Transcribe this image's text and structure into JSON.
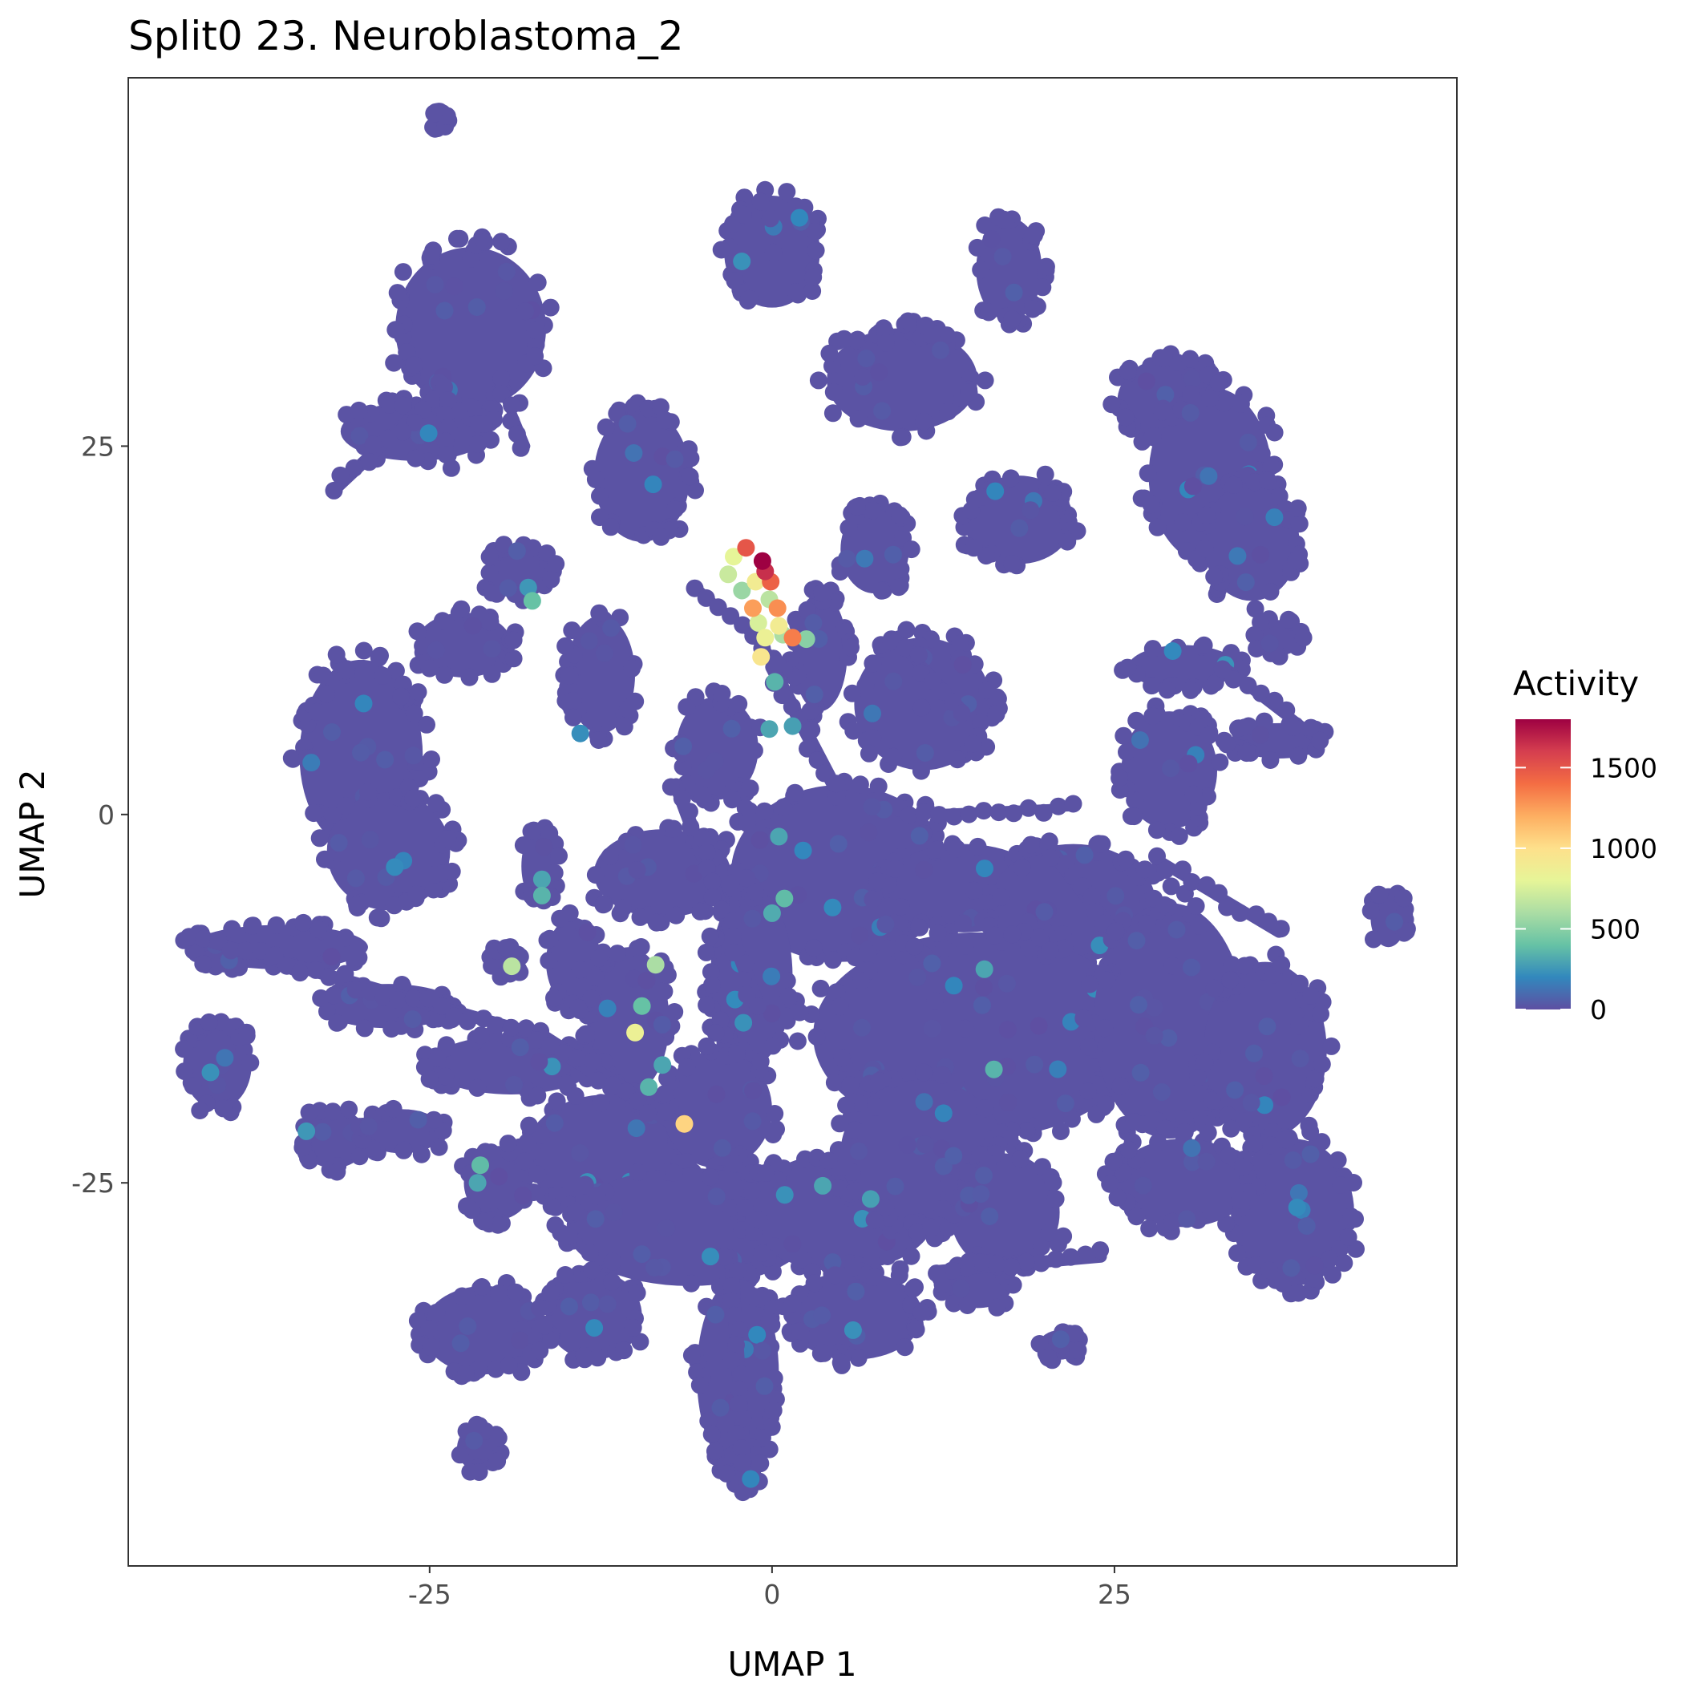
{
  "chart_data": {
    "type": "scatter",
    "title": "Split0 23. Neuroblastoma_2",
    "xlabel": "UMAP 1",
    "ylabel": "UMAP 2",
    "xlim": [
      -47,
      50
    ],
    "ylim": [
      -51,
      50
    ],
    "xticks": [
      "-25",
      "0",
      "25"
    ],
    "xtick_values": [
      -25,
      0,
      25
    ],
    "yticks": [
      "25",
      "0",
      "-25"
    ],
    "ytick_values": [
      25,
      0,
      -25
    ],
    "grid": false,
    "legend": {
      "title": "Activity",
      "position": "right",
      "labels": [
        "1500",
        "1000",
        "500",
        "0"
      ],
      "values": [
        1500,
        1000,
        500,
        0
      ],
      "range": [
        0,
        1800
      ],
      "colormap": [
        "#5e4fa2",
        "#3288bd",
        "#66c2a5",
        "#abdda4",
        "#e6f598",
        "#fee08b",
        "#fdae61",
        "#f46d43",
        "#d53e4f",
        "#9e0142"
      ]
    },
    "base_color": "#5b53a4",
    "clusters": [
      {
        "x": -24.3,
        "y": 47.1,
        "rx": 0.6,
        "ry": 0.6
      },
      {
        "x": 0.0,
        "y": 38.2,
        "rx": 3.5,
        "ry": 3.8
      },
      {
        "x": 17.3,
        "y": 37.0,
        "rx": 2.4,
        "ry": 3.5
      },
      {
        "x": -22.0,
        "y": 33.0,
        "rx": 5.5,
        "ry": 5.5
      },
      {
        "x": -26.0,
        "y": 26.0,
        "rx": 5.5,
        "ry": 2.0
      },
      {
        "x": 9.5,
        "y": 29.5,
        "rx": 5.5,
        "ry": 3.5
      },
      {
        "x": 29.0,
        "y": 28.0,
        "rx": 3.8,
        "ry": 3.0
      },
      {
        "x": 32.0,
        "y": 23.0,
        "rx": 4.5,
        "ry": 6.0
      },
      {
        "x": 35.0,
        "y": 18.5,
        "rx": 3.5,
        "ry": 4.0
      },
      {
        "x": -9.5,
        "y": 23.0,
        "rx": 3.5,
        "ry": 4.5
      },
      {
        "x": 18.0,
        "y": 20.0,
        "rx": 4.0,
        "ry": 3.0
      },
      {
        "x": 7.5,
        "y": 18.0,
        "rx": 2.5,
        "ry": 3.0
      },
      {
        "x": -18.5,
        "y": 16.5,
        "rx": 2.5,
        "ry": 1.8
      },
      {
        "x": -22.5,
        "y": 11.5,
        "rx": 3.5,
        "ry": 2.2
      },
      {
        "x": -12.5,
        "y": 9.5,
        "rx": 2.5,
        "ry": 4.0
      },
      {
        "x": -30.0,
        "y": 4.0,
        "rx": 4.5,
        "ry": 6.5
      },
      {
        "x": -28.0,
        "y": -2.5,
        "rx": 4.5,
        "ry": 4.0
      },
      {
        "x": -17.0,
        "y": -3.5,
        "rx": 1.3,
        "ry": 2.5
      },
      {
        "x": 30.0,
        "y": 10.0,
        "rx": 4.0,
        "ry": 1.5
      },
      {
        "x": 37.0,
        "y": 12.0,
        "rx": 1.8,
        "ry": 1.2
      },
      {
        "x": 37.0,
        "y": 5.0,
        "rx": 3.5,
        "ry": 1.2
      },
      {
        "x": 29.0,
        "y": 3.0,
        "rx": 3.5,
        "ry": 4.0
      },
      {
        "x": 11.0,
        "y": 7.5,
        "rx": 5.0,
        "ry": 4.5
      },
      {
        "x": 3.5,
        "y": 11.0,
        "rx": 2.0,
        "ry": 4.0
      },
      {
        "x": -4.0,
        "y": 4.5,
        "rx": 3.0,
        "ry": 3.5
      },
      {
        "x": 5.0,
        "y": -4.0,
        "rx": 8.0,
        "ry": 6.0
      },
      {
        "x": 14.0,
        "y": -5.0,
        "rx": 6.0,
        "ry": 3.0
      },
      {
        "x": 22.0,
        "y": -6.0,
        "rx": 6.0,
        "ry": 4.0
      },
      {
        "x": -8.0,
        "y": -4.0,
        "rx": 5.0,
        "ry": 3.0
      },
      {
        "x": -1.5,
        "y": -11.0,
        "rx": 3.0,
        "ry": 6.0
      },
      {
        "x": 15.0,
        "y": -15.0,
        "rx": 12.0,
        "ry": 7.0
      },
      {
        "x": 29.0,
        "y": -14.0,
        "rx": 5.5,
        "ry": 8.0
      },
      {
        "x": 36.0,
        "y": -16.0,
        "rx": 4.5,
        "ry": 6.0
      },
      {
        "x": 38.0,
        "y": -27.0,
        "rx": 4.5,
        "ry": 5.0
      },
      {
        "x": 30.0,
        "y": -25.0,
        "rx": 5.0,
        "ry": 3.0
      },
      {
        "x": 45.0,
        "y": -7.0,
        "rx": 1.3,
        "ry": 2.0
      },
      {
        "x": -10.5,
        "y": -14.0,
        "rx": 3.0,
        "ry": 5.0
      },
      {
        "x": -14.5,
        "y": -10.0,
        "rx": 2.0,
        "ry": 3.0
      },
      {
        "x": -19.5,
        "y": -10.0,
        "rx": 1.2,
        "ry": 1.0
      },
      {
        "x": -36.0,
        "y": -9.0,
        "rx": 6.5,
        "ry": 1.5
      },
      {
        "x": -28.0,
        "y": -13.0,
        "rx": 5.0,
        "ry": 1.5
      },
      {
        "x": -19.0,
        "y": -17.0,
        "rx": 6.0,
        "ry": 2.0
      },
      {
        "x": -40.5,
        "y": -17.0,
        "rx": 2.5,
        "ry": 3.0
      },
      {
        "x": -32.0,
        "y": -22.0,
        "rx": 2.5,
        "ry": 2.0
      },
      {
        "x": -27.0,
        "y": -21.5,
        "rx": 3.0,
        "ry": 1.5
      },
      {
        "x": -20.0,
        "y": -25.0,
        "rx": 2.5,
        "ry": 2.5
      },
      {
        "x": -12.0,
        "y": -23.0,
        "rx": 6.0,
        "ry": 4.0
      },
      {
        "x": -4.0,
        "y": -20.0,
        "rx": 4.0,
        "ry": 4.0
      },
      {
        "x": -6.0,
        "y": -28.0,
        "rx": 9.0,
        "ry": 4.0
      },
      {
        "x": 5.0,
        "y": -27.0,
        "rx": 7.0,
        "ry": 4.0
      },
      {
        "x": 11.0,
        "y": -23.0,
        "rx": 6.0,
        "ry": 5.0
      },
      {
        "x": 17.0,
        "y": -27.0,
        "rx": 4.0,
        "ry": 4.0
      },
      {
        "x": -21.0,
        "y": -35.0,
        "rx": 4.5,
        "ry": 3.0
      },
      {
        "x": -13.0,
        "y": -34.0,
        "rx": 3.5,
        "ry": 3.0
      },
      {
        "x": -2.5,
        "y": -38.0,
        "rx": 3.0,
        "ry": 6.5
      },
      {
        "x": 6.0,
        "y": -34.0,
        "rx": 5.0,
        "ry": 3.0
      },
      {
        "x": 21.0,
        "y": -36.0,
        "rx": 1.5,
        "ry": 1.0
      },
      {
        "x": -21.5,
        "y": -43.0,
        "rx": 1.5,
        "ry": 1.5
      },
      {
        "x": -2.0,
        "y": -44.5,
        "rx": 1.2,
        "ry": 1.5
      },
      {
        "x": 15.0,
        "y": -32.0,
        "rx": 2.5,
        "ry": 1.5
      }
    ],
    "streaks": [
      {
        "x1": -24.0,
        "y1": 29.0,
        "x2": -32.0,
        "y2": 22.0,
        "w": 0.9
      },
      {
        "x1": -24.0,
        "y1": 29.0,
        "x2": -23.5,
        "y2": 23.5,
        "w": 0.7
      },
      {
        "x1": -20.0,
        "y1": 29.5,
        "x2": -18.0,
        "y2": 25.0,
        "w": 0.7
      },
      {
        "x1": -5.5,
        "y1": 15.5,
        "x2": 1.0,
        "y2": 10.0,
        "w": 0.5
      },
      {
        "x1": 0.0,
        "y1": 10.0,
        "x2": 4.5,
        "y2": 2.0,
        "w": 1.0
      },
      {
        "x1": -7.0,
        "y1": 2.0,
        "x2": -1.0,
        "y2": -13.0,
        "w": 1.0
      },
      {
        "x1": -41.5,
        "y1": -8.5,
        "x2": -17.0,
        "y2": -15.0,
        "w": 0.9
      },
      {
        "x1": -17.0,
        "y1": -15.0,
        "x2": -7.0,
        "y2": -21.0,
        "w": 1.2
      },
      {
        "x1": 10.0,
        "y1": 0.0,
        "x2": 22.0,
        "y2": 0.5,
        "w": 0.6
      },
      {
        "x1": 20.0,
        "y1": -2.0,
        "x2": 25.0,
        "y2": -8.0,
        "w": 1.0
      },
      {
        "x1": 28.0,
        "y1": -3.0,
        "x2": 37.0,
        "y2": -8.0,
        "w": 0.8
      },
      {
        "x1": 24.0,
        "y1": -30.0,
        "x2": 12.0,
        "y2": -31.0,
        "w": 0.9
      },
      {
        "x1": 33.0,
        "y1": 10.0,
        "x2": 40.0,
        "y2": 5.0,
        "w": 0.8
      },
      {
        "x1": 9.0,
        "y1": 12.0,
        "x2": 14.0,
        "y2": 7.0,
        "w": 0.8
      },
      {
        "x1": -3.0,
        "y1": -30.0,
        "x2": -2.0,
        "y2": -44.0,
        "w": 1.0
      }
    ],
    "hot_points": [
      {
        "x": -0.7,
        "y": 17.2,
        "v": 1800
      },
      {
        "x": -1.9,
        "y": 18.1,
        "v": 1500
      },
      {
        "x": -0.5,
        "y": 16.5,
        "v": 1650
      },
      {
        "x": -0.1,
        "y": 15.8,
        "v": 1450
      },
      {
        "x": 0.4,
        "y": 14.0,
        "v": 1300
      },
      {
        "x": -1.4,
        "y": 14.0,
        "v": 1250
      },
      {
        "x": 1.5,
        "y": 12.0,
        "v": 1350
      },
      {
        "x": -1.2,
        "y": 15.8,
        "v": 900
      },
      {
        "x": -2.8,
        "y": 17.5,
        "v": 800
      },
      {
        "x": -3.2,
        "y": 16.3,
        "v": 700
      },
      {
        "x": -0.8,
        "y": 10.7,
        "v": 950
      },
      {
        "x": -0.5,
        "y": 12.0,
        "v": 850
      },
      {
        "x": 0.5,
        "y": 12.8,
        "v": 900
      },
      {
        "x": -1.0,
        "y": 13.0,
        "v": 750
      },
      {
        "x": 0.8,
        "y": 12.2,
        "v": 600
      },
      {
        "x": -0.2,
        "y": 14.6,
        "v": 650
      },
      {
        "x": -2.2,
        "y": 15.2,
        "v": 550
      },
      {
        "x": 2.5,
        "y": 11.9,
        "v": 500
      },
      {
        "x": 0.2,
        "y": 9.0,
        "v": 350
      },
      {
        "x": -0.2,
        "y": 5.8,
        "v": 300
      },
      {
        "x": 0.5,
        "y": -1.5,
        "v": 300
      },
      {
        "x": 0.9,
        "y": -5.7,
        "v": 380
      },
      {
        "x": 0.0,
        "y": -6.7,
        "v": 320
      },
      {
        "x": -19.0,
        "y": -10.3,
        "v": 650
      },
      {
        "x": -8.5,
        "y": -10.2,
        "v": 600
      },
      {
        "x": -10.0,
        "y": -14.8,
        "v": 850
      },
      {
        "x": -9.5,
        "y": -13.0,
        "v": 400
      },
      {
        "x": -9.0,
        "y": -18.5,
        "v": 350
      },
      {
        "x": -6.4,
        "y": -21.0,
        "v": 1050
      },
      {
        "x": -8.0,
        "y": -17.0,
        "v": 300
      },
      {
        "x": -17.5,
        "y": 14.5,
        "v": 400
      },
      {
        "x": -17.8,
        "y": 15.4,
        "v": 250
      },
      {
        "x": -16.8,
        "y": -5.5,
        "v": 350
      },
      {
        "x": -16.8,
        "y": -4.4,
        "v": 300
      },
      {
        "x": -21.3,
        "y": -23.8,
        "v": 380
      },
      {
        "x": -21.5,
        "y": -25.0,
        "v": 300
      },
      {
        "x": 3.7,
        "y": -25.2,
        "v": 300
      },
      {
        "x": 7.2,
        "y": -26.1,
        "v": 280
      },
      {
        "x": 15.5,
        "y": -10.5,
        "v": 300
      },
      {
        "x": 16.2,
        "y": -17.3,
        "v": 350
      },
      {
        "x": -34.0,
        "y": -21.5,
        "v": 250
      },
      {
        "x": -41.0,
        "y": -17.5,
        "v": 230
      },
      {
        "x": -4.5,
        "y": -30.0,
        "v": 220
      },
      {
        "x": 1.5,
        "y": 6.0,
        "v": 280
      },
      {
        "x": -14.0,
        "y": 5.5,
        "v": 220
      },
      {
        "x": 2.0,
        "y": 40.5,
        "v": 200
      }
    ]
  }
}
